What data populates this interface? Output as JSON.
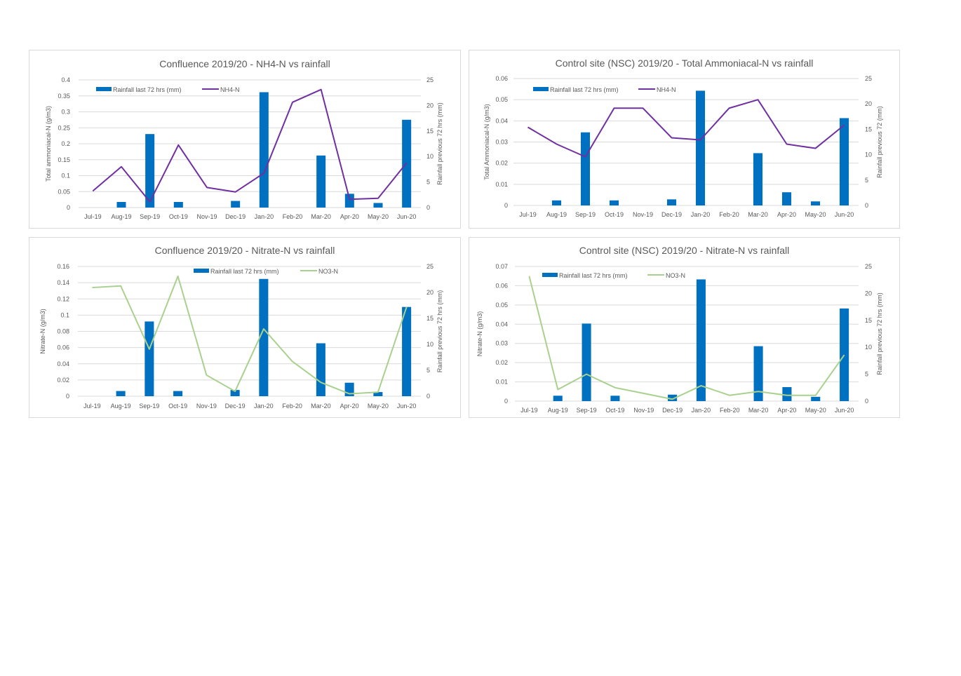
{
  "colors": {
    "rain": "#0070C0",
    "nh4": "#7030A0",
    "no3": "#A9D18E",
    "grid": "#d9d9d9",
    "text": "#595959"
  },
  "chart_data": [
    {
      "id": "confluence-nh4",
      "type": "bar-line",
      "title": "Confluence 2019/20 - NH4-N vs rainfall",
      "ylabel": "Total ammoniacal-N (g/m3)",
      "y2label": "Rainfall previous 72 hrs (mm)",
      "categories": [
        "Jul-19",
        "Aug-19",
        "Sep-19",
        "Oct-19",
        "Nov-19",
        "Dec-19",
        "Jan-20",
        "Feb-20",
        "Mar-20",
        "Apr-20",
        "May-20",
        "Jun-20"
      ],
      "yticks": [
        "0",
        "0.05",
        "0.1",
        "0.15",
        "0.2",
        "0.25",
        "0.3",
        "0.35",
        "0.4"
      ],
      "ylim": [
        0,
        0.4
      ],
      "y2ticks": [
        "0",
        "5",
        "10",
        "15",
        "20",
        "25"
      ],
      "y2lim": [
        0,
        25
      ],
      "legend": {
        "bar": "Rainfall last 72 hrs (mm)",
        "line": "NH4-N"
      },
      "line_color_key": "nh4",
      "series": [
        {
          "name": "Rainfall last 72 hrs (mm)",
          "kind": "bar",
          "axis": "right",
          "values": [
            0,
            1.1,
            14.4,
            1.1,
            0,
            1.3,
            22.6,
            0,
            10.2,
            2.7,
            0.9,
            17.2
          ]
        },
        {
          "name": "NH4-N",
          "kind": "line",
          "axis": "left",
          "values": [
            0.052,
            0.128,
            0.018,
            0.196,
            0.063,
            0.049,
            0.108,
            0.33,
            0.37,
            0.026,
            0.029,
            0.14
          ]
        }
      ]
    },
    {
      "id": "control-nh4",
      "type": "bar-line",
      "title": "Control site (NSC) 2019/20 - Total Ammoniacal-N vs rainfall",
      "ylabel": "Total Ammoniacal-N (g/m3)",
      "y2label": "Rainfall previous 72 (mm)",
      "categories": [
        "Jul-19",
        "Aug-19",
        "Sep-19",
        "Oct-19",
        "Nov-19",
        "Dec-19",
        "Jan-20",
        "Feb-20",
        "Mar-20",
        "Apr-20",
        "May-20",
        "Jun-20"
      ],
      "yticks": [
        "0",
        "0.01",
        "0.02",
        "0.03",
        "0.04",
        "0.05",
        "0.06"
      ],
      "ylim": [
        0,
        0.06
      ],
      "y2ticks": [
        "0",
        "5",
        "10",
        "15",
        "20",
        "25"
      ],
      "y2lim": [
        0,
        25
      ],
      "legend": {
        "bar": "Rainfall last 72 hrs (mm)",
        "line": "NH4-N"
      },
      "line_color_key": "nh4",
      "series": [
        {
          "name": "Rainfall last 72 hrs (mm)",
          "kind": "bar",
          "axis": "right",
          "values": [
            0,
            1.0,
            14.4,
            1.0,
            0,
            1.2,
            22.6,
            0,
            10.3,
            2.6,
            0.8,
            17.2
          ]
        },
        {
          "name": "NH4-N",
          "kind": "line",
          "axis": "left",
          "values": [
            0.037,
            0.029,
            0.023,
            0.046,
            0.046,
            0.032,
            0.031,
            0.046,
            0.05,
            0.029,
            0.027,
            0.038
          ]
        }
      ]
    },
    {
      "id": "confluence-no3",
      "type": "bar-line",
      "title": "Confluence 2019/20 - Nitrate-N vs rainfall",
      "ylabel": "Nitrate-N (g/m3)",
      "y2label": "Rainfall previous 72 hrs (mm)",
      "categories": [
        "Jul-19",
        "Aug-19",
        "Sep-19",
        "Oct-19",
        "Nov-19",
        "Dec-19",
        "Jan-20",
        "Feb-20",
        "Mar-20",
        "Apr-20",
        "May-20",
        "Jun-20"
      ],
      "yticks": [
        "0",
        "0.02",
        "0.04",
        "0.06",
        "0.08",
        "0.1",
        "0.12",
        "0.14",
        "0.16"
      ],
      "ylim": [
        0,
        0.16
      ],
      "y2ticks": [
        "0",
        "5",
        "10",
        "15",
        "20",
        "25"
      ],
      "y2lim": [
        0,
        25
      ],
      "legend": {
        "bar": "Rainfall last 72 hrs (mm)",
        "line": "NO3-N"
      },
      "line_color_key": "no3",
      "series": [
        {
          "name": "Rainfall last 72 hrs (mm)",
          "kind": "bar",
          "axis": "right",
          "values": [
            0,
            1.0,
            14.4,
            1.0,
            0,
            1.2,
            22.6,
            0,
            10.2,
            2.6,
            0.8,
            17.2
          ]
        },
        {
          "name": "NO3-N",
          "kind": "line",
          "axis": "left",
          "values": [
            0.134,
            0.136,
            0.058,
            0.148,
            0.026,
            0.006,
            0.083,
            0.043,
            0.017,
            0.003,
            0.005,
            0.11
          ]
        }
      ]
    },
    {
      "id": "control-no3",
      "type": "bar-line",
      "title": "Control site (NSC) 2019/20 - Nitrate-N vs rainfall",
      "ylabel": "Nitrate-N (g/m3)",
      "y2label": "Rainfall previous 72 hrs (mm)",
      "categories": [
        "Jul-19",
        "Aug-19",
        "Sep-19",
        "Oct-19",
        "Nov-19",
        "Dec-19",
        "Jan-20",
        "Feb-20",
        "Mar-20",
        "Apr-20",
        "May-20",
        "Jun-20"
      ],
      "yticks": [
        "0",
        "0.01",
        "0.02",
        "0.03",
        "0.04",
        "0.05",
        "0.06",
        "0.07"
      ],
      "ylim": [
        0,
        0.07
      ],
      "y2ticks": [
        "0",
        "5",
        "10",
        "15",
        "20",
        "25"
      ],
      "y2lim": [
        0,
        25
      ],
      "legend": {
        "bar": "Rainfall last 72 hrs (mm)",
        "line": "NO3-N"
      },
      "line_color_key": "no3",
      "series": [
        {
          "name": "Rainfall last 72 hrs (mm)",
          "kind": "bar",
          "axis": "right",
          "values": [
            0,
            1.0,
            14.4,
            1.0,
            0,
            1.2,
            22.6,
            0,
            10.2,
            2.6,
            0.8,
            17.2
          ]
        },
        {
          "name": "NO3-N",
          "kind": "line",
          "axis": "left",
          "values": [
            0.065,
            0.006,
            0.014,
            0.007,
            0.004,
            0.001,
            0.008,
            0.003,
            0.005,
            0.003,
            0.003,
            0.024
          ]
        }
      ]
    }
  ]
}
